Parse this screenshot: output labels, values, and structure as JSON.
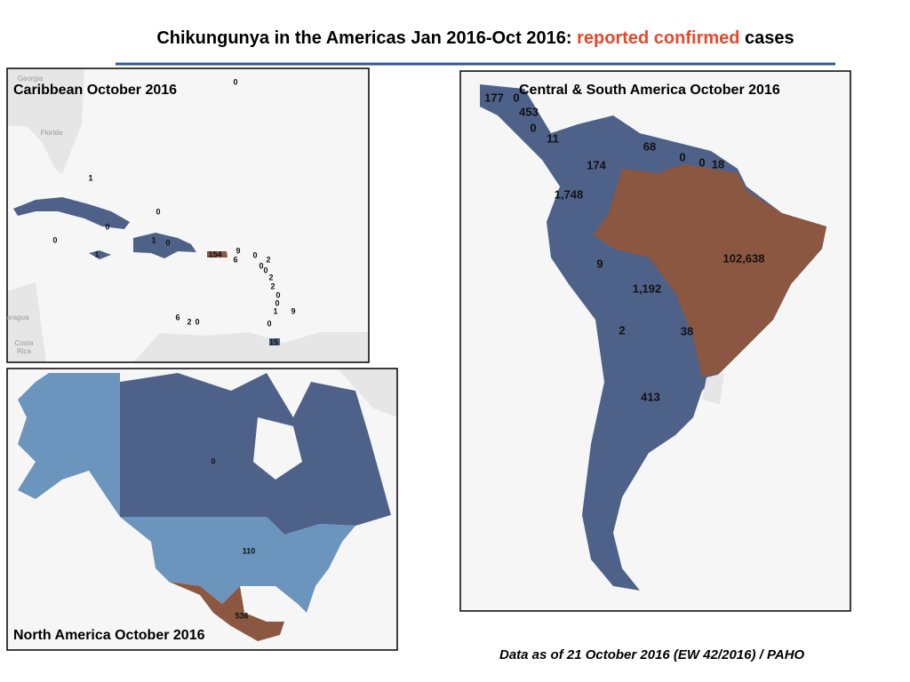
{
  "header": {
    "title": {
      "prefix": "Chikungunya in the Americas Jan 2016-Oct 2016: ",
      "highlight": "reported confirmed",
      "suffix": " cases"
    }
  },
  "panels": {
    "caribbean": {
      "title": "Caribbean October 2016",
      "places": [
        "Georgia",
        "Florida",
        "aragua",
        "Costa",
        "Rica"
      ],
      "labels": [
        "0",
        "1",
        "0",
        "0",
        "0",
        "1",
        "0",
        "1",
        "154",
        "9",
        "6",
        "0",
        "2",
        "0",
        "0",
        "2",
        "2",
        "0",
        "0",
        "1",
        "9",
        "6",
        "2",
        "0",
        "0",
        "15"
      ]
    },
    "central_south": {
      "title": "Central & South America October 2016",
      "labels": [
        "177",
        "0",
        "453",
        "0",
        "11",
        "68",
        "0",
        "0",
        "18",
        "174",
        "1,748",
        "102,638",
        "9",
        "1,192",
        "2",
        "38",
        "413"
      ]
    },
    "north_america": {
      "title": "North America October  2016",
      "labels": [
        "0",
        "110",
        "536"
      ]
    }
  },
  "footer": "Data as of 21 October 2016 (EW 42/2016) / PAHO"
}
